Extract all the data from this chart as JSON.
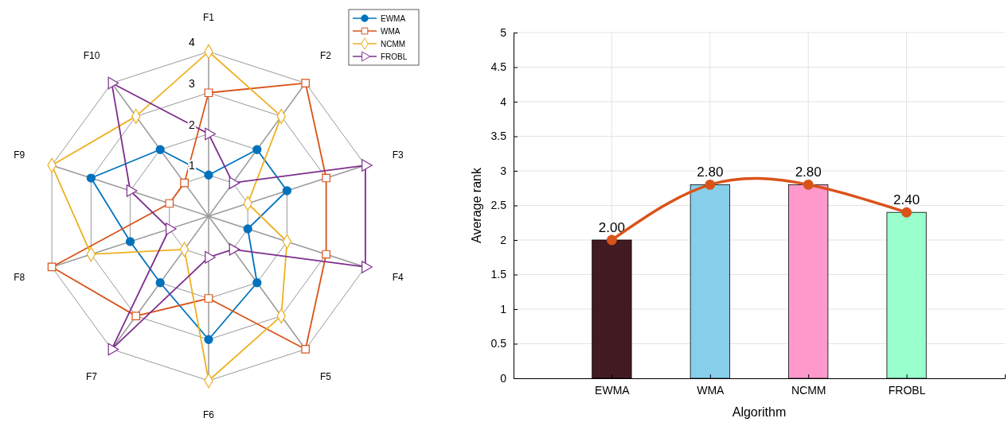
{
  "chart_data": [
    {
      "type": "radar",
      "categories": [
        "F1",
        "F2",
        "F3",
        "F4",
        "F5",
        "F6",
        "F7",
        "F8",
        "F9",
        "F10"
      ],
      "ylim": [
        0,
        4
      ],
      "yticks": [
        1,
        2,
        3,
        4
      ],
      "legend": "top right",
      "line_style": "solid",
      "series": [
        {
          "name": "EWMA",
          "color": "#0072bd",
          "marker": "circle",
          "values": [
            1,
            2,
            2,
            1,
            2,
            3,
            2,
            2,
            3,
            2
          ]
        },
        {
          "name": "WMA",
          "color": "#d95319",
          "marker": "square",
          "values": [
            3,
            4,
            3,
            3,
            4,
            2,
            3,
            4,
            1,
            1
          ]
        },
        {
          "name": "NCMM",
          "color": "#edb120",
          "marker": "diamond",
          "values": [
            4,
            3,
            1,
            2,
            3,
            4,
            1,
            3,
            4,
            3
          ]
        },
        {
          "name": "FROBL",
          "color": "#7e2f8e",
          "marker": "triangle",
          "values": [
            2,
            1,
            4,
            4,
            1,
            1,
            4,
            1,
            2,
            4
          ]
        }
      ]
    },
    {
      "type": "bar",
      "categories": [
        "EWMA",
        "WMA",
        "NCMM",
        "FROBL"
      ],
      "xlabel": "Algorithm",
      "ylabel": "Average rank",
      "ylim": [
        0,
        5
      ],
      "yticks": [
        0,
        0.5,
        1,
        1.5,
        2,
        2.5,
        3,
        3.5,
        4,
        4.5,
        5
      ],
      "grid": true,
      "series": [
        {
          "type": "bar",
          "colors": [
            "#421a22",
            "#87ceeb",
            "#ff99cc",
            "#99ffcc"
          ],
          "values": [
            2.0,
            2.8,
            2.8,
            2.4
          ],
          "value_labels": [
            "2.00",
            "2.80",
            "2.80",
            "2.40"
          ]
        },
        {
          "type": "line",
          "color": "#d95319",
          "marker": "circle",
          "values": [
            2.0,
            2.8,
            2.8,
            2.4
          ]
        }
      ]
    }
  ]
}
